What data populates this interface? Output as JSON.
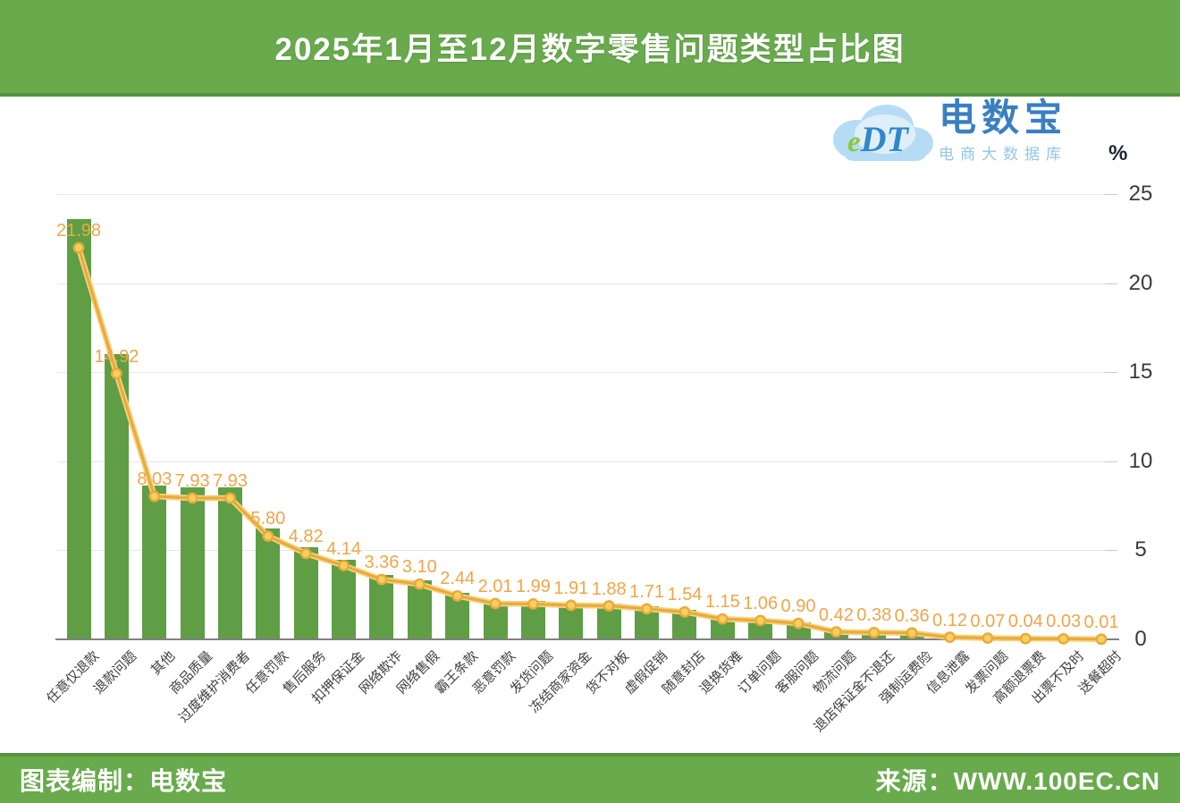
{
  "header": {
    "title": "2025年1月至12月数字零售问题类型占比图"
  },
  "logo": {
    "brand_short": "eDT",
    "brand_short_e": "e",
    "brand_short_dt": "DT",
    "brand_name": "电数宝",
    "brand_subtitle": "电商大数据库"
  },
  "footer": {
    "left": "图表编制：电数宝",
    "right": "来源：WWW.100EC.CN"
  },
  "chart_data": {
    "type": "bar",
    "combo": [
      "bar",
      "line"
    ],
    "title": "2025年1月至12月数字零售问题类型占比图",
    "unit": "%",
    "categories": [
      "任意仅退款",
      "退款问题",
      "其他",
      "商品质量",
      "过度维护消费者",
      "任意罚款",
      "售后服务",
      "扣押保证金",
      "网络欺诈",
      "网络售假",
      "霸王条款",
      "恶意罚款",
      "发货问题",
      "冻结商家资金",
      "货不对板",
      "虚假促销",
      "随意封店",
      "退换货难",
      "订单问题",
      "客服问题",
      "物流问题",
      "退店保证金不退还",
      "强制运费险",
      "信息泄露",
      "发票问题",
      "高额退票费",
      "出票不及时",
      "送餐超时"
    ],
    "values": [
      21.98,
      14.92,
      8.03,
      7.93,
      7.93,
      5.8,
      4.82,
      4.14,
      3.36,
      3.1,
      2.44,
      2.01,
      1.99,
      1.91,
      1.88,
      1.71,
      1.54,
      1.15,
      1.06,
      0.9,
      0.42,
      0.38,
      0.36,
      0.12,
      0.07,
      0.04,
      0.03,
      0.01
    ],
    "value_label_decimals": 2,
    "xlabel": "",
    "ylabel": "%",
    "y_ticks": [
      0,
      5,
      10,
      15,
      20,
      25
    ],
    "ylim": [
      0,
      25
    ],
    "grid": true,
    "legend": "none",
    "colors": {
      "bar": "#5f9e45",
      "line": "#e9a93c",
      "line_glow": "#f6d27a",
      "dot_fill": "#f9cf5f",
      "value_label": "#efa648",
      "band_green": "#69aa4d",
      "band_green_dark": "#579140",
      "brand_blue": "#3a7fc1"
    }
  }
}
